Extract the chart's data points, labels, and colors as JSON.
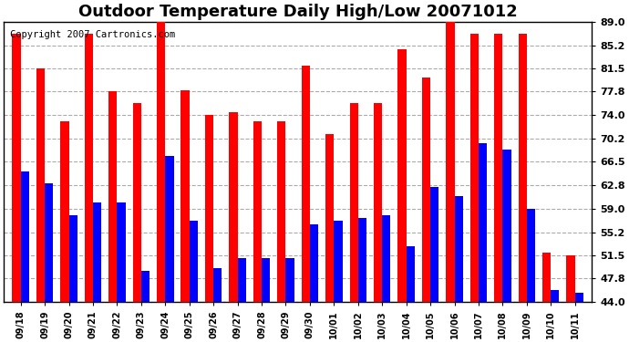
{
  "title": "Outdoor Temperature Daily High/Low 20071012",
  "copyright": "Copyright 2007 Cartronics.com",
  "dates": [
    "09/18",
    "09/19",
    "09/20",
    "09/21",
    "09/22",
    "09/23",
    "09/24",
    "09/25",
    "09/26",
    "09/27",
    "09/28",
    "09/29",
    "09/30",
    "10/01",
    "10/02",
    "10/03",
    "10/04",
    "10/05",
    "10/06",
    "10/07",
    "10/08",
    "10/09",
    "10/10",
    "10/11"
  ],
  "highs": [
    87.0,
    81.5,
    73.0,
    87.0,
    77.8,
    76.0,
    89.0,
    78.0,
    74.0,
    74.5,
    73.0,
    73.0,
    82.0,
    71.0,
    76.0,
    76.0,
    84.5,
    80.0,
    89.0,
    87.0,
    87.0,
    87.0,
    52.0,
    51.5
  ],
  "lows": [
    65.0,
    63.0,
    58.0,
    60.0,
    60.0,
    49.0,
    67.5,
    57.0,
    49.5,
    51.0,
    51.0,
    51.0,
    56.5,
    57.0,
    57.5,
    58.0,
    53.0,
    62.5,
    61.0,
    69.5,
    68.5,
    59.0,
    46.0,
    45.5
  ],
  "high_color": "#ff0000",
  "low_color": "#0000ff",
  "bg_color": "#ffffff",
  "plot_bg_color": "#ffffff",
  "grid_color": "#aaaaaa",
  "yticks": [
    44.0,
    47.8,
    51.5,
    55.2,
    59.0,
    62.8,
    66.5,
    70.2,
    74.0,
    77.8,
    81.5,
    85.2,
    89.0
  ],
  "ymin": 44.0,
  "ymax": 89.0,
  "title_fontsize": 13,
  "copyright_fontsize": 7.5,
  "bar_width": 0.35
}
